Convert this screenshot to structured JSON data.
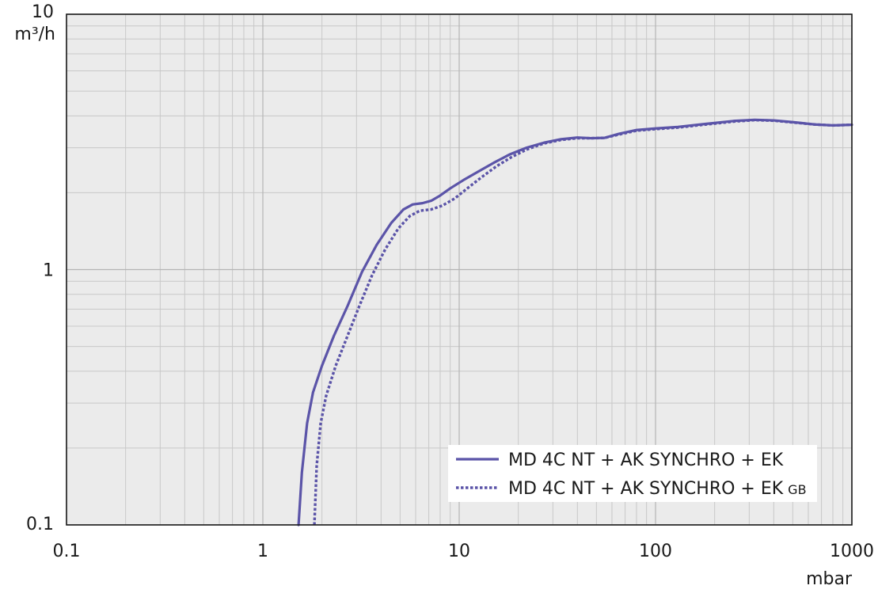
{
  "chart_data": {
    "type": "line",
    "xscale": "log",
    "yscale": "log",
    "xlim": [
      0.1,
      1000
    ],
    "ylim": [
      0.1,
      10
    ],
    "grid": true,
    "legend_position": "bottom-right",
    "xunit": "mbar",
    "yunit": "m³/h",
    "xticks": [
      {
        "value": 0.1,
        "label": "0.1"
      },
      {
        "value": 1,
        "label": "1"
      },
      {
        "value": 10,
        "label": "10"
      },
      {
        "value": 100,
        "label": "100"
      },
      {
        "value": 1000,
        "label": "1000"
      }
    ],
    "yticks": [
      {
        "value": 0.1,
        "label": "0.1"
      },
      {
        "value": 1,
        "label": "1"
      },
      {
        "value": 10,
        "label": "10"
      }
    ],
    "colors": {
      "series": "#5b54a8",
      "grid": "#c8c8c8",
      "background": "#ebebeb",
      "axis": "#1a1a1a"
    },
    "series": [
      {
        "name": "MD 4C NT + AK SYNCHRO + EK",
        "style": "solid",
        "points": [
          [
            1.52,
            0.1
          ],
          [
            1.58,
            0.16
          ],
          [
            1.68,
            0.25
          ],
          [
            1.8,
            0.33
          ],
          [
            2.0,
            0.42
          ],
          [
            2.3,
            0.55
          ],
          [
            2.7,
            0.72
          ],
          [
            3.2,
            0.98
          ],
          [
            3.8,
            1.25
          ],
          [
            4.5,
            1.52
          ],
          [
            5.2,
            1.72
          ],
          [
            5.8,
            1.8
          ],
          [
            6.5,
            1.82
          ],
          [
            7.2,
            1.86
          ],
          [
            8.0,
            1.95
          ],
          [
            9.0,
            2.08
          ],
          [
            10.5,
            2.24
          ],
          [
            12.5,
            2.42
          ],
          [
            15.0,
            2.62
          ],
          [
            18.0,
            2.82
          ],
          [
            22.0,
            3.0
          ],
          [
            27.0,
            3.14
          ],
          [
            33.0,
            3.24
          ],
          [
            40.0,
            3.29
          ],
          [
            47.0,
            3.27
          ],
          [
            55.0,
            3.28
          ],
          [
            65.0,
            3.4
          ],
          [
            80.0,
            3.52
          ],
          [
            100.0,
            3.57
          ],
          [
            130.0,
            3.62
          ],
          [
            180.0,
            3.72
          ],
          [
            250.0,
            3.82
          ],
          [
            320.0,
            3.86
          ],
          [
            400.0,
            3.84
          ],
          [
            500.0,
            3.78
          ],
          [
            650.0,
            3.7
          ],
          [
            800.0,
            3.67
          ],
          [
            1000.0,
            3.69
          ]
        ]
      },
      {
        "name": "MD 4C NT + AK SYNCHRO + EK GB",
        "name_main": "MD 4C NT + AK SYNCHRO + EK",
        "name_sub": "GB",
        "style": "dotted",
        "points": [
          [
            1.83,
            0.1
          ],
          [
            1.88,
            0.17
          ],
          [
            1.97,
            0.25
          ],
          [
            2.1,
            0.32
          ],
          [
            2.35,
            0.42
          ],
          [
            2.7,
            0.55
          ],
          [
            3.1,
            0.72
          ],
          [
            3.6,
            0.95
          ],
          [
            4.2,
            1.2
          ],
          [
            4.9,
            1.45
          ],
          [
            5.6,
            1.62
          ],
          [
            6.3,
            1.7
          ],
          [
            7.2,
            1.72
          ],
          [
            8.2,
            1.78
          ],
          [
            9.5,
            1.9
          ],
          [
            11.0,
            2.08
          ],
          [
            13.0,
            2.3
          ],
          [
            15.5,
            2.54
          ],
          [
            18.5,
            2.76
          ],
          [
            22.0,
            2.95
          ],
          [
            27.0,
            3.12
          ],
          [
            33.0,
            3.22
          ],
          [
            40.0,
            3.27
          ],
          [
            47.0,
            3.27
          ],
          [
            55.0,
            3.28
          ],
          [
            65.0,
            3.38
          ],
          [
            80.0,
            3.5
          ],
          [
            100.0,
            3.55
          ],
          [
            130.0,
            3.6
          ],
          [
            180.0,
            3.7
          ],
          [
            250.0,
            3.8
          ],
          [
            320.0,
            3.85
          ],
          [
            400.0,
            3.83
          ],
          [
            500.0,
            3.77
          ],
          [
            650.0,
            3.7
          ],
          [
            800.0,
            3.67
          ],
          [
            1000.0,
            3.69
          ]
        ]
      }
    ]
  }
}
